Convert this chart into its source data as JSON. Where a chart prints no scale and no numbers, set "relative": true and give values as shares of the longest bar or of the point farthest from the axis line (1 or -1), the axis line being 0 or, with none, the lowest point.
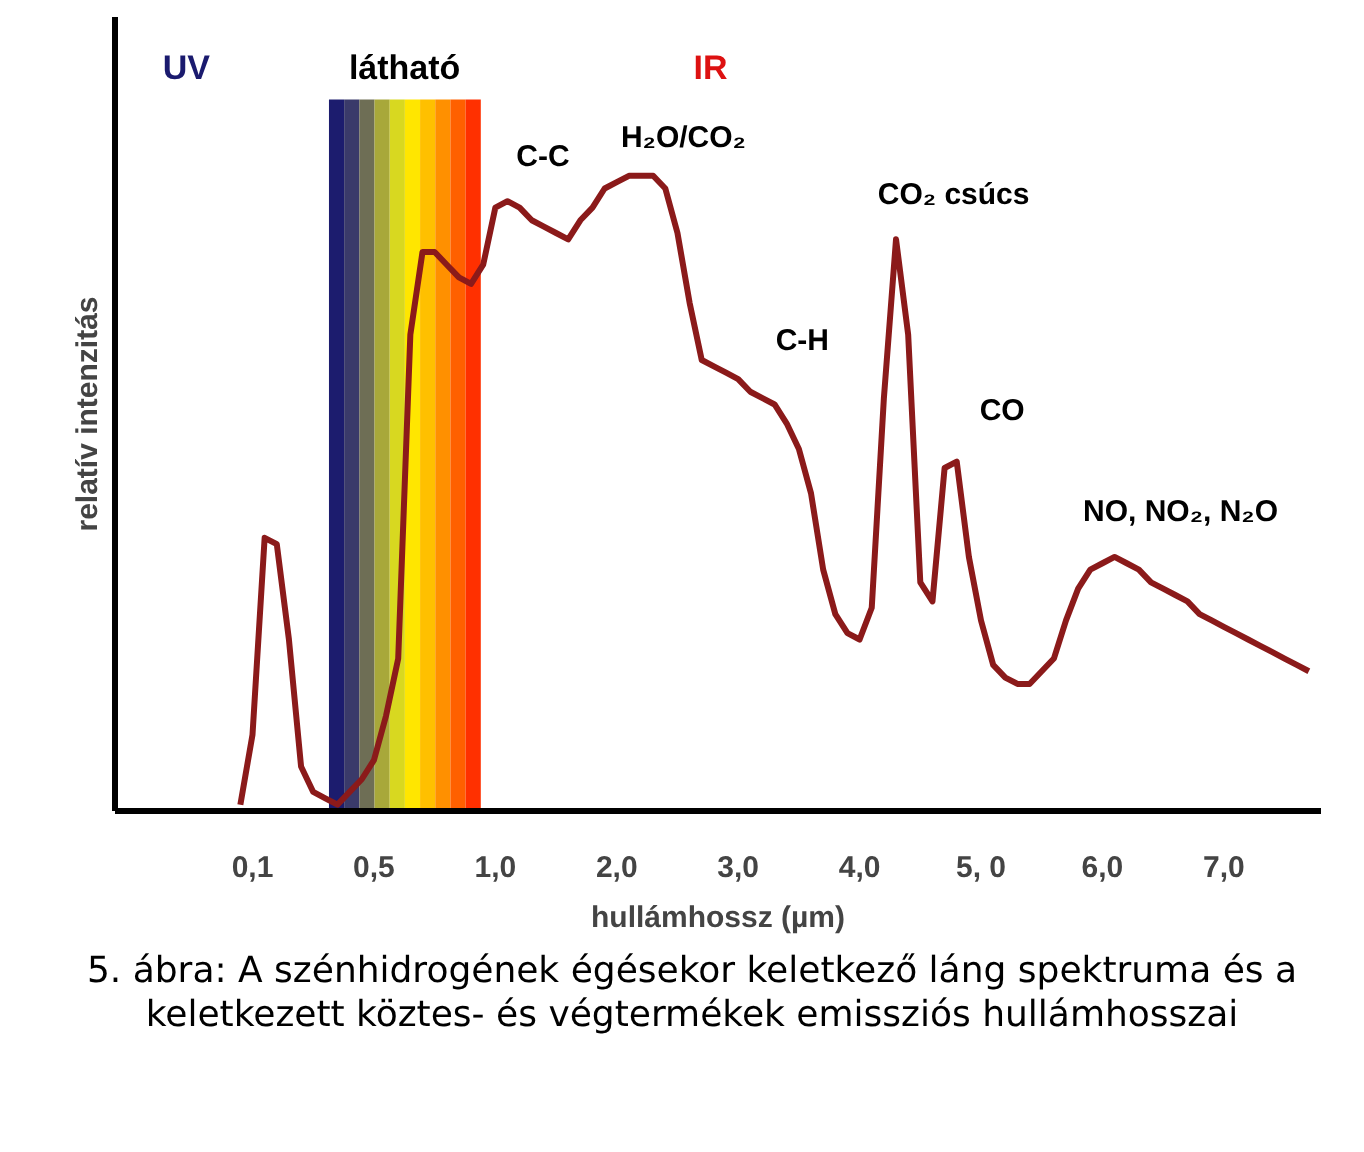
{
  "chart_data": {
    "type": "line",
    "relative": true,
    "xlabel": "hullámhossz (µm)",
    "ylabel": "relatív intenzitás",
    "categories": [
      null,
      "0,1",
      null,
      null,
      null,
      null,
      null,
      null,
      null,
      null,
      null,
      "0,5",
      null,
      null,
      null,
      null,
      null,
      null,
      null,
      null,
      null,
      "1,0",
      null,
      null,
      null,
      null,
      null,
      null,
      null,
      null,
      null,
      "2,0",
      null,
      null,
      null,
      null,
      null,
      null,
      null,
      null,
      null,
      "3,0",
      null,
      null,
      null,
      null,
      null,
      null,
      null,
      null,
      null,
      "4,0",
      null,
      null,
      null,
      null,
      null,
      null,
      null,
      null,
      null,
      "5, 0",
      null,
      null,
      null,
      null,
      null,
      null,
      null,
      null,
      null,
      "6,0",
      null,
      null,
      null,
      null,
      null,
      null,
      null,
      null,
      null,
      "7,0",
      null,
      null,
      null,
      null,
      null,
      null,
      null
    ],
    "grid": false,
    "series": [
      {
        "color": "#8b1a1a",
        "values": [
          0.01,
          0.12,
          0.43,
          0.42,
          0.27,
          0.07,
          0.03,
          0.02,
          0.01,
          0.03,
          0.05,
          0.08,
          0.15,
          0.24,
          0.75,
          0.88,
          0.88,
          0.86,
          0.84,
          0.83,
          0.86,
          0.95,
          0.96,
          0.95,
          0.93,
          0.92,
          0.91,
          0.9,
          0.93,
          0.95,
          0.98,
          0.99,
          1,
          1,
          1,
          0.98,
          0.91,
          0.8,
          0.71,
          0.7,
          0.69,
          0.68,
          0.66,
          0.65,
          0.64,
          0.61,
          0.57,
          0.5,
          0.38,
          0.31,
          0.28,
          0.27,
          0.32,
          0.65,
          0.9,
          0.75,
          0.36,
          0.33,
          0.54,
          0.55,
          0.4,
          0.3,
          0.23,
          0.21,
          0.2,
          0.2,
          0.22,
          0.24,
          0.3,
          0.35,
          0.38,
          0.39,
          0.4,
          0.39,
          0.38,
          0.36,
          0.35,
          0.34,
          0.33,
          0.31,
          0.3,
          0.29,
          0.28,
          0.27,
          0.26,
          0.25,
          0.24,
          0.23,
          0.22
        ]
      }
    ],
    "annotations": [
      "UV",
      "látható",
      "IR",
      "C-C",
      "H₂O/CO₂",
      "CO₂ csúcs",
      "C-H",
      "CO",
      "NO, NO₂, N₂O",
      "5. ábra: A szénhidrogének égésekor keletkező láng spektruma és a keletkezett köztes- és végtermékek emissziós hullámhosszai"
    ]
  }
}
